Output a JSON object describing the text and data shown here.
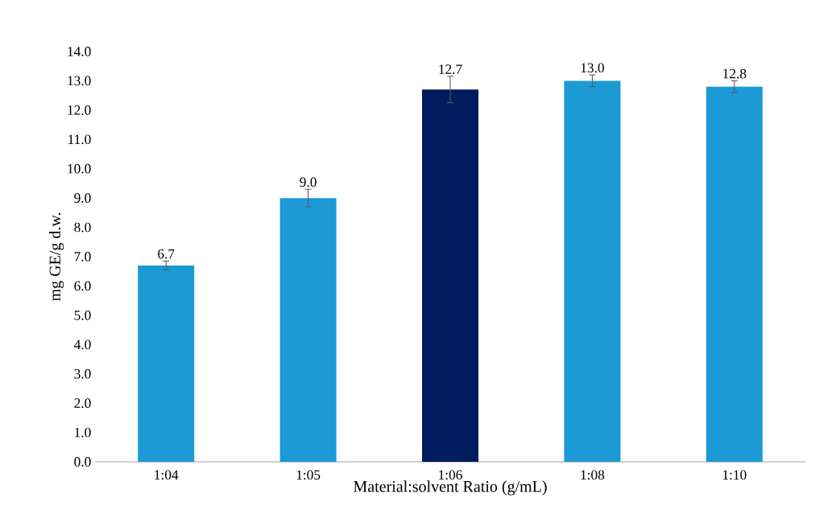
{
  "chart_data": {
    "type": "bar",
    "xlabel": "Material:solvent Ratio (g/mL)",
    "ylabel": "mg GE/g d.w.",
    "categories": [
      "1:04",
      "1:05",
      "1:06",
      "1:08",
      "1:10"
    ],
    "values": [
      6.7,
      9.0,
      12.7,
      13.0,
      12.8
    ],
    "colors": [
      "#1b9ad6",
      "#1b9ad6",
      "#001c5e",
      "#1b9ad6",
      "#1b9ad6"
    ],
    "errors": [
      0.15,
      0.3,
      0.45,
      0.2,
      0.2
    ],
    "ylim": [
      0,
      14
    ],
    "yticks": [
      {
        "value": 0,
        "label": "0.0"
      },
      {
        "value": 1,
        "label": "1.0"
      },
      {
        "value": 2,
        "label": "2.0"
      },
      {
        "value": 3,
        "label": "3.0"
      },
      {
        "value": 4,
        "label": "4.0"
      },
      {
        "value": 5,
        "label": "5.0"
      },
      {
        "value": 6,
        "label": "6.0"
      },
      {
        "value": 7,
        "label": "7.0"
      },
      {
        "value": 8,
        "label": "8.0"
      },
      {
        "value": 9,
        "label": "9.0"
      },
      {
        "value": 10,
        "label": "10.0"
      },
      {
        "value": 11,
        "label": "11.0"
      },
      {
        "value": 12,
        "label": "12.0"
      },
      {
        "value": 13,
        "label": "13.0"
      },
      {
        "value": 14,
        "label": "14.0"
      }
    ],
    "value_labels": [
      "6.7",
      "9.0",
      "12.7",
      "13.0",
      "12.8"
    ]
  }
}
